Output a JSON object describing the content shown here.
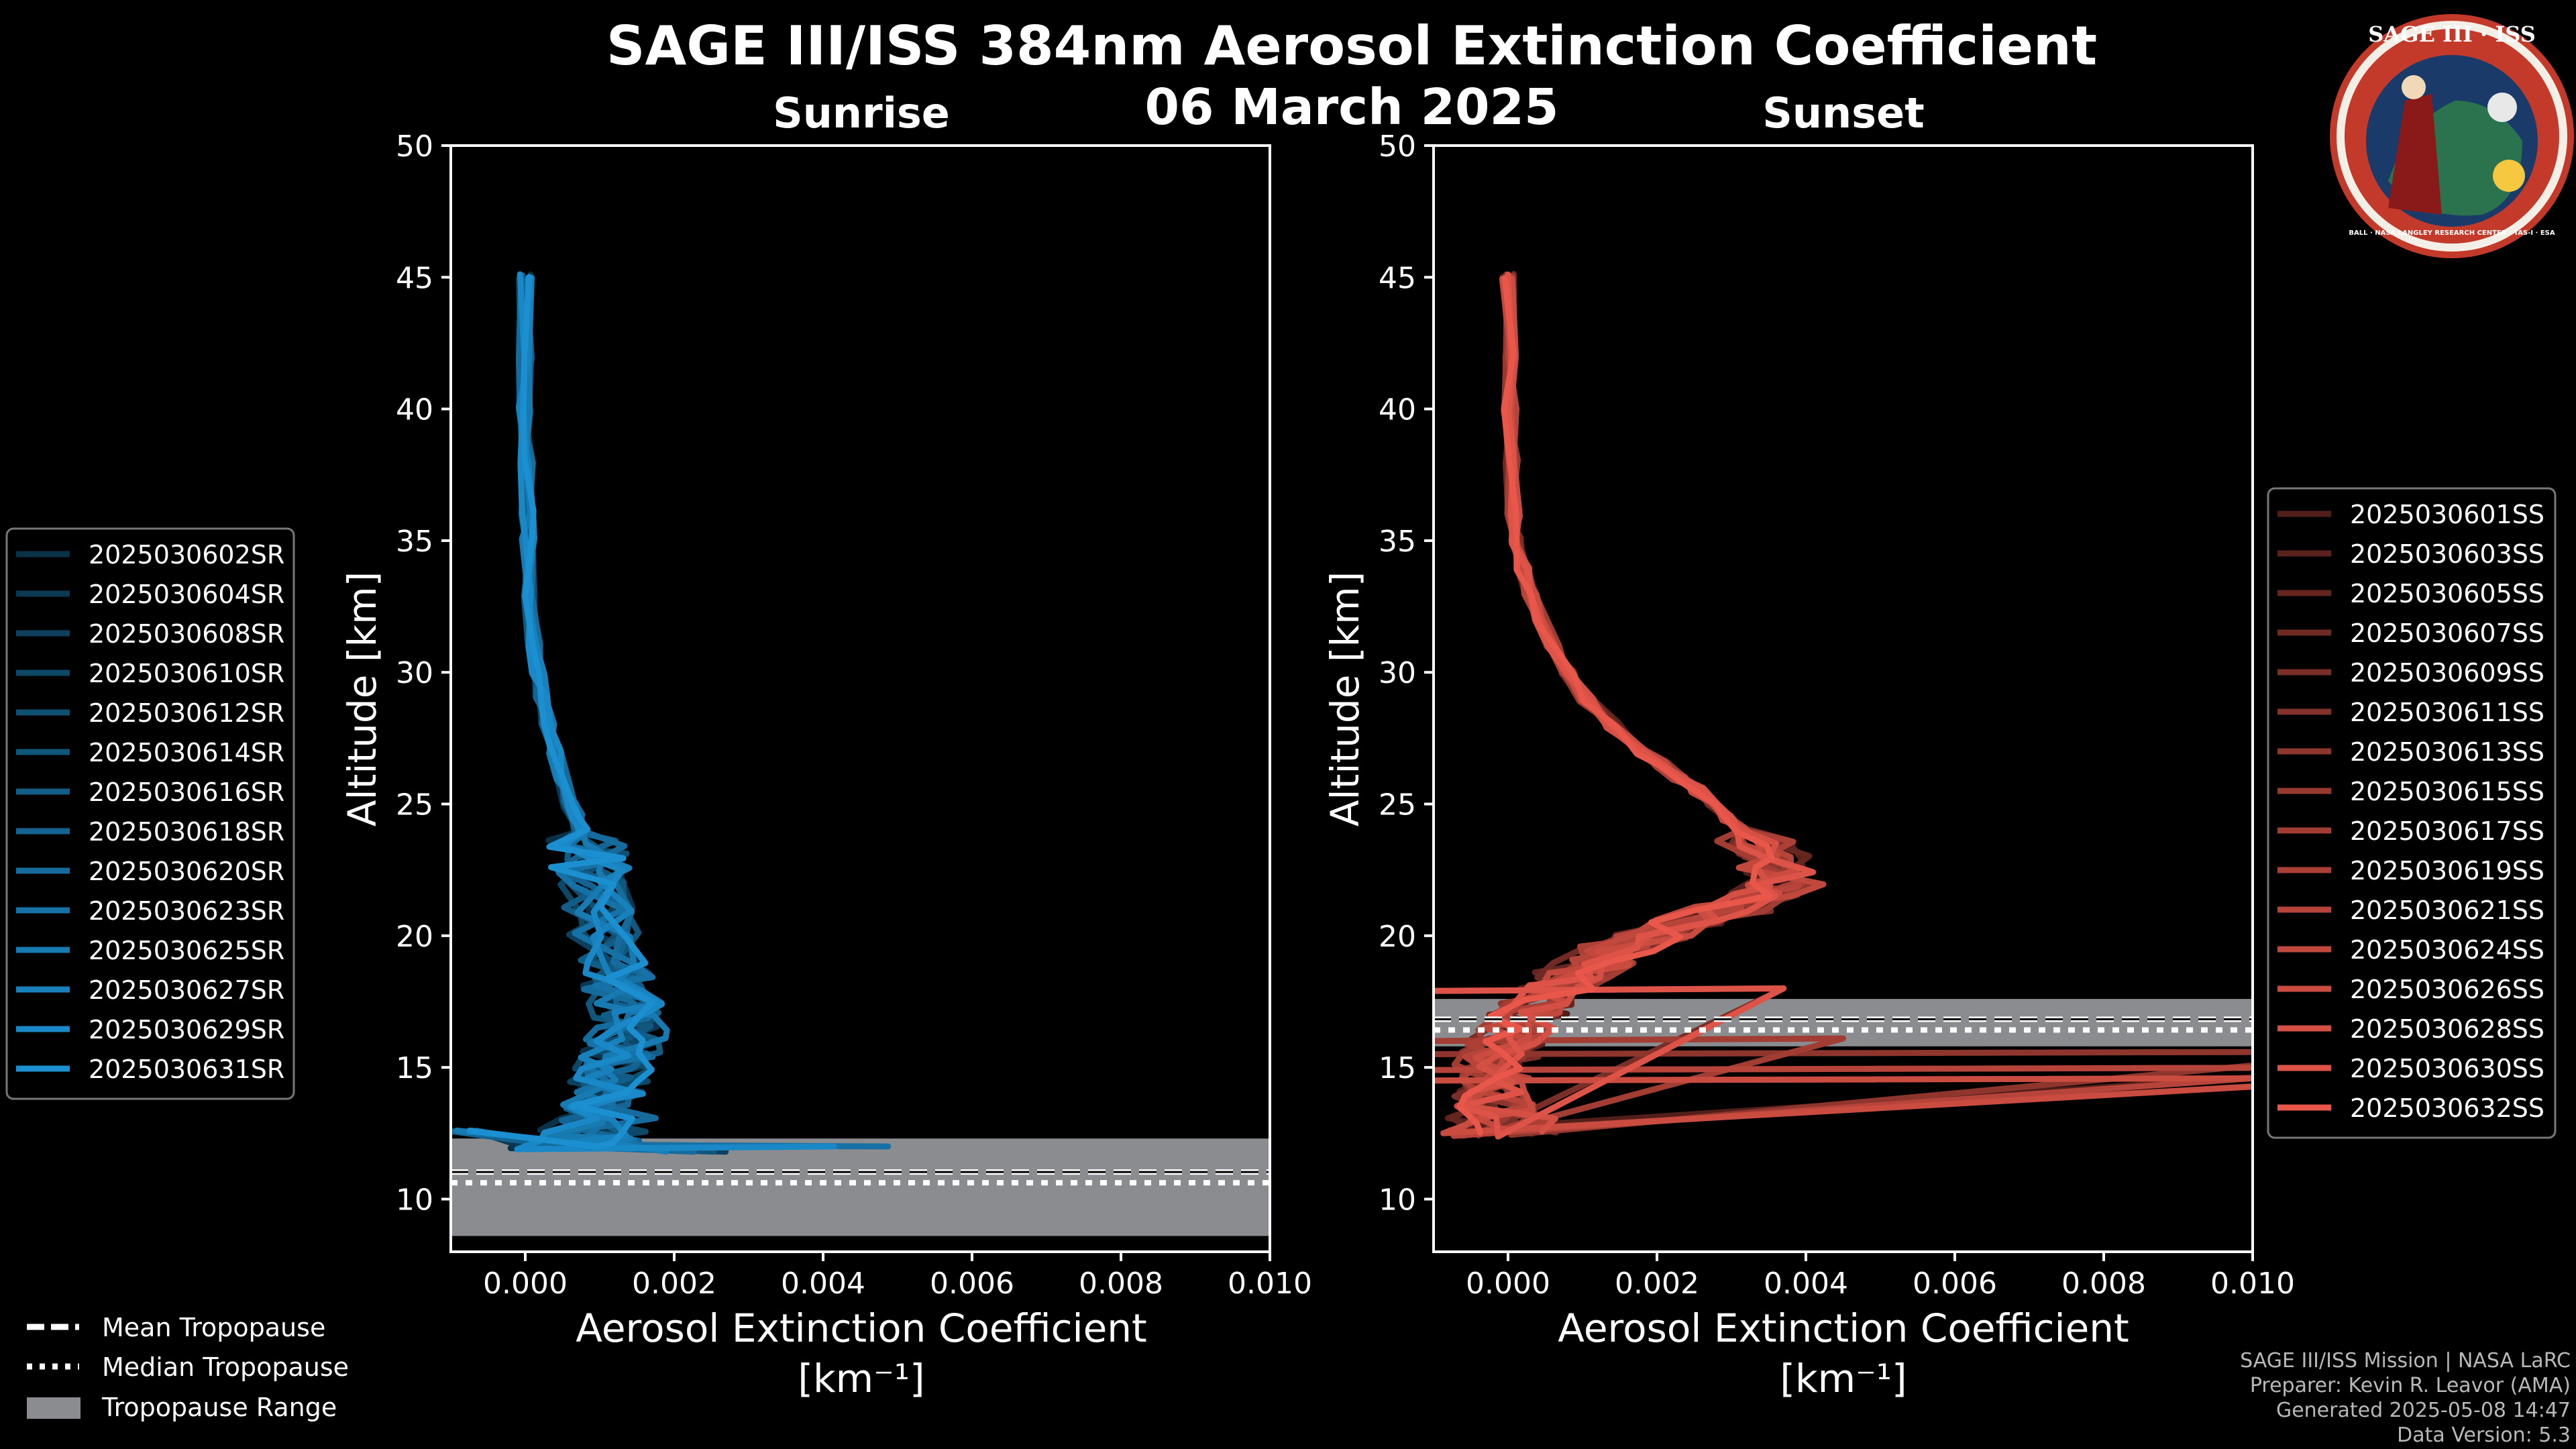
{
  "title_line1": "SAGE III/ISS 384nm Aerosol Extinction Coefficient",
  "title_line2": "06 March 2025",
  "colors": {
    "background": "#000000",
    "sunrise": "#1b8fd0",
    "sunset": "#e8574a",
    "trop_range": "#8a8c90"
  },
  "logo": {
    "top_text": "SAGE III · ISS",
    "ring_text": "BALL · NASA LANGLEY RESEARCH CENTER · TAS-I · ESA"
  },
  "legend_tropopause": [
    "Mean Tropopause",
    "Median Tropopause",
    "Tropopause Range"
  ],
  "footer": {
    "line1": "SAGE III/ISS Mission | NASA LaRC",
    "line2": "Preparer: Kevin R. Leavor (AMA)",
    "line3": "Generated 2025-05-08 14:47",
    "line4": "Data Version: 5.3"
  },
  "chart_data": [
    {
      "type": "line",
      "panel": "sunrise",
      "title": "Sunrise",
      "xlabel": "Aerosol Extinction Coefficient",
      "xunit": "[km⁻¹]",
      "ylabel": "Altitude [km]",
      "xlim": [
        -0.001,
        0.01
      ],
      "ylim": [
        8,
        50
      ],
      "xticks": [
        0.0,
        0.002,
        0.004,
        0.006,
        0.008,
        0.01
      ],
      "xtick_labels": [
        "0.000",
        "0.002",
        "0.004",
        "0.006",
        "0.008",
        "0.010"
      ],
      "yticks": [
        10,
        15,
        20,
        25,
        30,
        35,
        40,
        45,
        50
      ],
      "tropopause": {
        "mean": 10.8,
        "median": 10.8,
        "range": [
          8.6,
          12.3
        ]
      },
      "legend": [
        "2025030602SR",
        "2025030604SR",
        "2025030608SR",
        "2025030610SR",
        "2025030612SR",
        "2025030614SR",
        "2025030616SR",
        "2025030618SR",
        "2025030620SR",
        "2025030623SR",
        "2025030625SR",
        "2025030627SR",
        "2025030629SR",
        "2025030631SR"
      ],
      "profile": {
        "alt": [
          45,
          42,
          40,
          38,
          36,
          35,
          33,
          31,
          30,
          29,
          28,
          27,
          26,
          25,
          24.5,
          24,
          23.5,
          23,
          22.5,
          22,
          21,
          20,
          19,
          18.5,
          18,
          17.5,
          17,
          16.5,
          16,
          15.5,
          15,
          14.5,
          14,
          13.5,
          13,
          12.5,
          12.2,
          12
        ],
        "ext": [
          0.0,
          0.0,
          0.0,
          2e-05,
          3e-05,
          4e-05,
          7e-05,
          0.00012,
          0.00017,
          0.00023,
          0.0003,
          0.0004,
          0.0005,
          0.0006,
          0.00068,
          0.00075,
          0.00082,
          0.00085,
          0.00088,
          0.00092,
          0.00098,
          0.00105,
          0.00115,
          0.00125,
          0.0013,
          0.00135,
          0.00138,
          0.0014,
          0.00135,
          0.00128,
          0.0012,
          0.00115,
          0.0011,
          0.00105,
          0.001,
          0.00095,
          0.0008,
          0.0006
        ]
      }
    },
    {
      "type": "line",
      "panel": "sunset",
      "title": "Sunset",
      "xlabel": "Aerosol Extinction Coefficient",
      "xunit": "[km⁻¹]",
      "ylabel": "Altitude [km]",
      "xlim": [
        -0.001,
        0.01
      ],
      "ylim": [
        8,
        50
      ],
      "xticks": [
        0.0,
        0.002,
        0.004,
        0.006,
        0.008,
        0.01
      ],
      "xtick_labels": [
        "0.000",
        "0.002",
        "0.004",
        "0.006",
        "0.008",
        "0.010"
      ],
      "yticks": [
        10,
        15,
        20,
        25,
        30,
        35,
        40,
        45,
        50
      ],
      "tropopause": {
        "mean": 16.6,
        "median": 16.6,
        "range": [
          15.8,
          17.6
        ]
      },
      "legend": [
        "2025030601SS",
        "2025030603SS",
        "2025030605SS",
        "2025030607SS",
        "2025030609SS",
        "2025030611SS",
        "2025030613SS",
        "2025030615SS",
        "2025030617SS",
        "2025030619SS",
        "2025030621SS",
        "2025030624SS",
        "2025030626SS",
        "2025030628SS",
        "2025030630SS",
        "2025030632SS"
      ],
      "profile": {
        "alt": [
          45,
          42,
          40,
          38,
          36,
          35,
          34,
          33,
          32,
          31,
          30,
          29,
          28,
          27,
          26.5,
          26,
          25.5,
          25,
          24.5,
          24,
          23.5,
          23,
          22.5,
          22,
          21.5,
          21,
          20.5,
          20,
          19.5,
          19,
          18.5,
          18,
          17.5,
          17,
          16.5,
          16,
          15.5,
          15,
          14.5,
          14,
          13.5,
          13,
          12.5
        ],
        "ext": [
          0.0,
          2e-05,
          3e-05,
          5e-05,
          8e-05,
          0.00012,
          0.0002,
          0.0003,
          0.00045,
          0.0006,
          0.0008,
          0.00105,
          0.0014,
          0.0018,
          0.00205,
          0.0023,
          0.00255,
          0.00275,
          0.00295,
          0.00315,
          0.00335,
          0.00352,
          0.00365,
          0.00375,
          0.00345,
          0.003,
          0.00245,
          0.00195,
          0.0015,
          0.00115,
          0.00085,
          0.0006,
          0.0004,
          0.00025,
          0.00012,
          0.0,
          -0.00012,
          -0.0002,
          -0.00025,
          -0.00025,
          -0.0002,
          -0.00015,
          -0.0001
        ]
      }
    }
  ]
}
